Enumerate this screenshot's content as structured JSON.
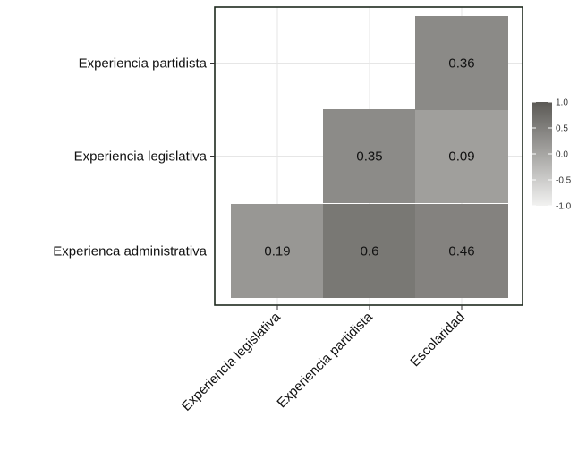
{
  "chart_data": {
    "type": "heatmap",
    "title": "",
    "x_categories": [
      "Experiencia legislativa",
      "Experiencia partidista",
      "Escolaridad"
    ],
    "y_categories": [
      "Experienca administrativa",
      "Experiencia legislativa",
      "Experiencia partidista"
    ],
    "cells": [
      {
        "x": "Experiencia legislativa",
        "y": "Experienca administrativa",
        "value": 0.19,
        "label": "0.19"
      },
      {
        "x": "Experiencia partidista",
        "y": "Experienca administrativa",
        "value": 0.6,
        "label": "0.6"
      },
      {
        "x": "Escolaridad",
        "y": "Experienca administrativa",
        "value": 0.46,
        "label": "0.46"
      },
      {
        "x": "Experiencia partidista",
        "y": "Experiencia legislativa",
        "value": 0.35,
        "label": "0.35"
      },
      {
        "x": "Escolaridad",
        "y": "Experiencia legislativa",
        "value": 0.09,
        "label": "0.09"
      },
      {
        "x": "Escolaridad",
        "y": "Experiencia partidista",
        "value": 0.36,
        "label": "0.36"
      }
    ],
    "color_scale": {
      "min": -1.0,
      "max": 1.0,
      "low_color": "#f2f2f1",
      "high_color": "#5b5955",
      "ticks": [
        "1.0",
        "0.5",
        "0.0",
        "-0.5",
        "-1.0"
      ]
    },
    "grid": true,
    "legend_position": "right"
  }
}
